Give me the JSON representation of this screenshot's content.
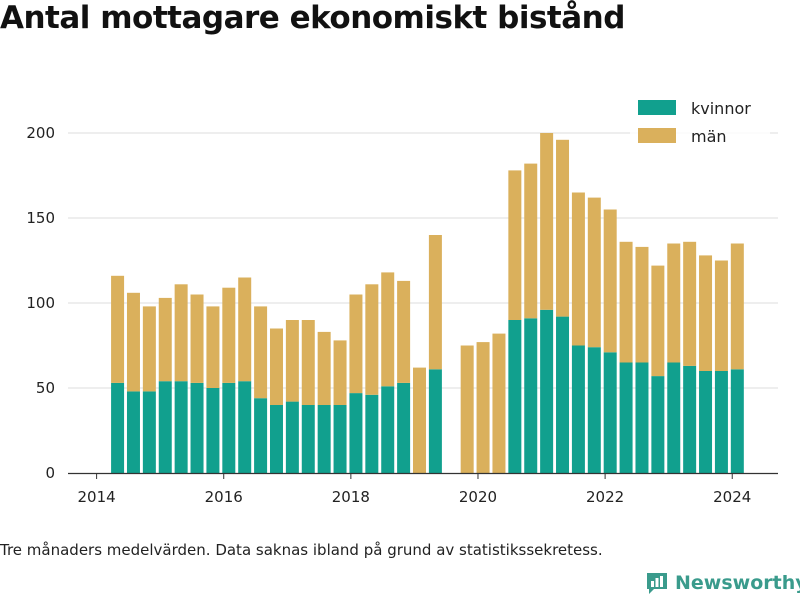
{
  "title": "Antal mottagare ekonomiskt bistånd",
  "footnote": "Tre månaders medelvärden. Data saknas ibland på grund av statistikssekretess.",
  "brand": {
    "name": "Newsworthy",
    "icon": "newsworthy-logo-icon",
    "color": "#3a9b8c"
  },
  "colors": {
    "kvinnor": "#11a08e",
    "man": "#dab05c",
    "grid": "#dddddd",
    "axis": "#333333"
  },
  "chart_data": {
    "type": "bar",
    "stacked": true,
    "title": "Antal mottagare ekonomiskt bistånd",
    "xlabel": "",
    "ylabel": "",
    "xlim": [
      2013.55,
      2024.72
    ],
    "ylim": [
      0,
      210
    ],
    "grid": true,
    "legend_position": "top-right",
    "x_ticks": [
      "2014",
      "2016",
      "2018",
      "2020",
      "2022",
      "2024"
    ],
    "y_ticks": [
      "0",
      "50",
      "100",
      "150",
      "200"
    ],
    "x": [
      2014.33,
      2014.58,
      2014.83,
      2015.08,
      2015.33,
      2015.58,
      2015.83,
      2016.08,
      2016.33,
      2016.58,
      2016.83,
      2017.08,
      2017.33,
      2017.58,
      2017.83,
      2018.08,
      2018.33,
      2018.58,
      2018.83,
      2019.08,
      2019.33,
      2019.58,
      2019.83,
      2020.08,
      2020.33,
      2020.58,
      2020.83,
      2021.08,
      2021.33,
      2021.58,
      2021.83,
      2022.08,
      2022.33,
      2022.58,
      2022.83,
      2023.08,
      2023.33,
      2023.58,
      2023.83,
      2024.08
    ],
    "series": [
      {
        "name": "kvinnor",
        "values": [
          53,
          48,
          48,
          54,
          54,
          53,
          50,
          53,
          54,
          44,
          40,
          42,
          40,
          40,
          40,
          47,
          46,
          51,
          53,
          0,
          61,
          null,
          0,
          0,
          0,
          90,
          91,
          96,
          92,
          75,
          74,
          71,
          65,
          65,
          57,
          65,
          63,
          60,
          60,
          61
        ]
      },
      {
        "name": "män",
        "values": [
          63,
          58,
          50,
          49,
          57,
          52,
          48,
          56,
          61,
          54,
          45,
          48,
          50,
          43,
          38,
          58,
          65,
          67,
          60,
          62,
          79,
          null,
          75,
          77,
          82,
          88,
          91,
          104,
          104,
          90,
          88,
          84,
          71,
          68,
          65,
          70,
          73,
          68,
          65,
          74
        ]
      }
    ]
  }
}
